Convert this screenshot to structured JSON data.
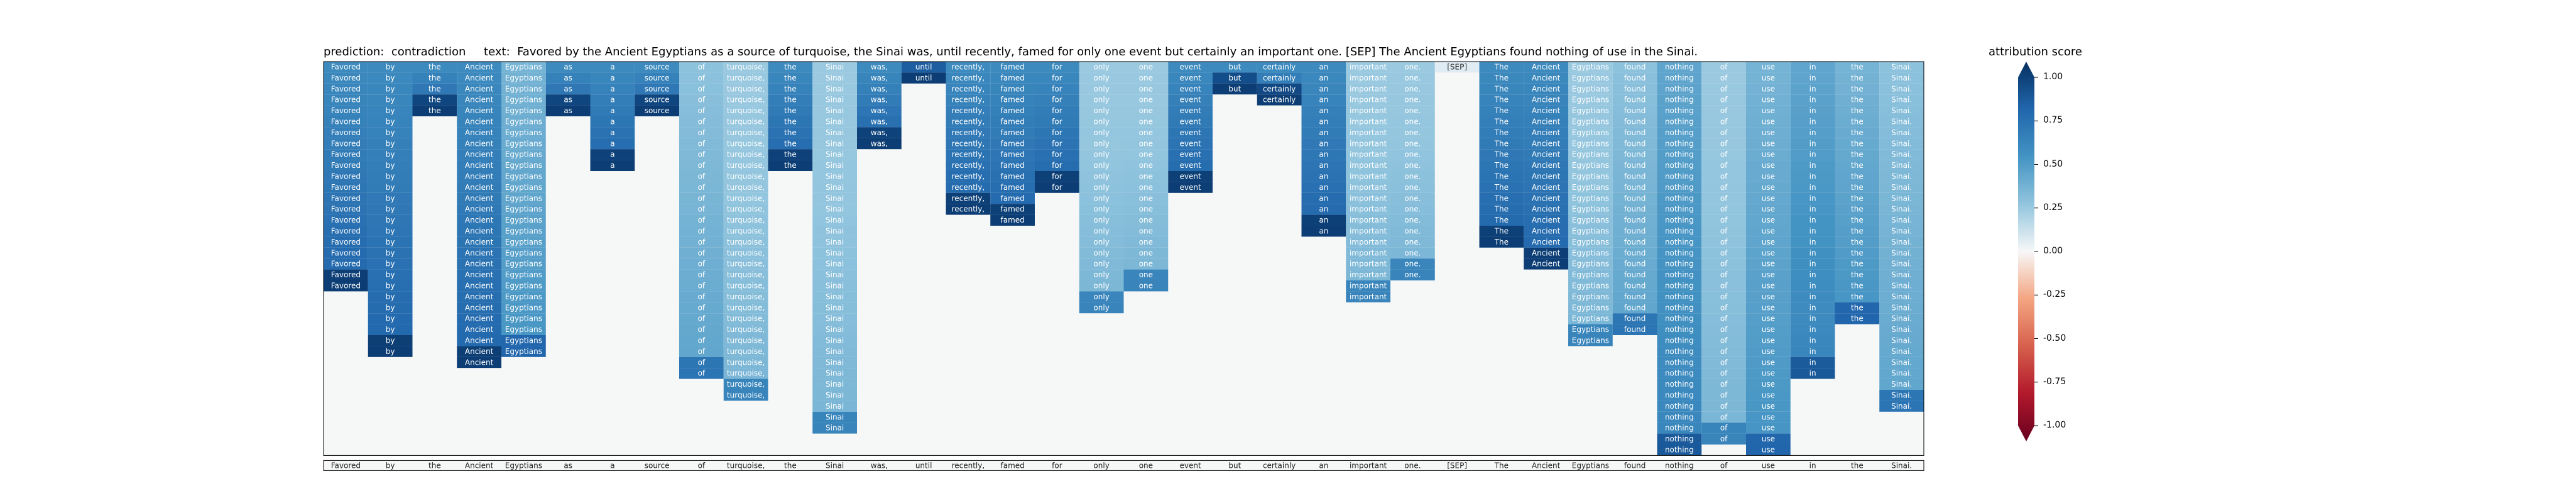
{
  "chart_data": {
    "type": "heatmap",
    "title_parts": {
      "prediction_label": "prediction:",
      "prediction_value": "contradiction",
      "text_label": "text:",
      "text_value": "Favored by the Ancient Egyptians as a source of turquoise, the Sinai was, until recently, famed for only one event but certainly an important one. [SEP] The Ancient Egyptians found nothing of use in the Sinai."
    },
    "title": "prediction:  contradiction     text:  Favored by the Ancient Egyptians as a source of turquoise, the Sinai was, until recently, famed for only one event but certainly an important one. [SEP] The Ancient Egyptians found nothing of use in the Sinai.",
    "tokens": [
      "Favored",
      "by",
      "the",
      "Ancient",
      "Egyptians",
      "as",
      "a",
      "source",
      "of",
      "turquoise,",
      "the",
      "Sinai",
      "was,",
      "until",
      "recently,",
      "famed",
      "for",
      "only",
      "one",
      "event",
      "but",
      "certainly",
      "an",
      "important",
      "one.",
      "[SEP]",
      "The",
      "Ancient",
      "Egyptians",
      "found",
      "nothing",
      "of",
      "use",
      "in",
      "the",
      "Sinai."
    ],
    "column_bottom": [
      20,
      26,
      4,
      27,
      26,
      4,
      9,
      4,
      28,
      30,
      9,
      33,
      7,
      1,
      13,
      14,
      11,
      22,
      20,
      11,
      2,
      3,
      15,
      21,
      19,
      0,
      16,
      18,
      25,
      24,
      35,
      34,
      35,
      28,
      23,
      31
    ],
    "column_values": [
      0.8,
      0.8,
      0.8,
      0.8,
      0.65,
      0.8,
      0.8,
      0.8,
      0.6,
      0.55,
      0.8,
      0.55,
      0.8,
      0.8,
      0.8,
      0.8,
      0.8,
      0.55,
      0.55,
      0.8,
      0.8,
      0.8,
      0.8,
      0.55,
      0.55,
      0.0,
      0.8,
      0.8,
      0.55,
      0.6,
      0.7,
      0.55,
      0.65,
      0.7,
      0.65,
      0.6
    ],
    "colorbar": {
      "label": "attribution score",
      "range": [
        -1.0,
        1.0
      ],
      "ticks": [
        "1.00",
        "0.75",
        "0.50",
        "0.25",
        "0.00",
        "-0.25",
        "-0.50",
        "-0.75",
        "-1.00"
      ],
      "colormap": "RdBu",
      "extend": "both"
    }
  }
}
